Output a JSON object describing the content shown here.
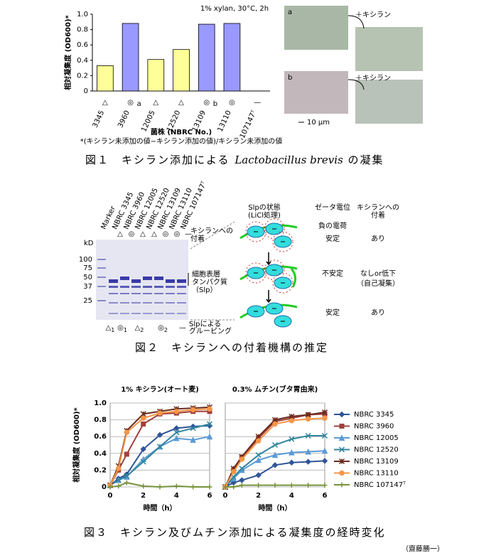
{
  "figure1": {
    "caption_prefix": "図１　キシラン添加による ",
    "caption_italic": "Lactobacillus brevis",
    "caption_suffix": " の凝集",
    "photo_labels": [
      "a",
      "b"
    ],
    "photo_treatment": "＋キシラン",
    "scale_bar": "10 μm"
  },
  "figure2": {
    "lanes": [
      "Marker",
      "NBRC 3345",
      "NBRC 3960",
      "NBRC 12005",
      "NBRC 12520",
      "NBRC 13109",
      "NBRC 13110",
      "NBRC 107147ᵀ"
    ],
    "lane_markers": [
      "△",
      "◎",
      "△",
      "△",
      "◎",
      "◎",
      "—"
    ],
    "marker_row_label": [
      "キシランへの",
      "付着"
    ],
    "kd_label": "kD",
    "kd_ticks": [
      100,
      75,
      50,
      37,
      25
    ],
    "band_label": [
      "細胞表層",
      "タンパク質",
      "（Slp）"
    ],
    "groups": [
      {
        "symbol": "△",
        "index": "1"
      },
      {
        "symbol": "◎",
        "index": "1"
      },
      {
        "symbol": "△",
        "index": "2"
      },
      {
        "symbol": "◎",
        "index": "2"
      },
      {
        "symbol": "—"
      }
    ],
    "group_label": [
      "Slpによる",
      "グルーピング"
    ],
    "diagram_headers": [
      [
        "Slpの状態",
        "(LiCl処理)"
      ],
      [
        "ゼータ電位"
      ],
      [
        "キシランへの",
        "付着"
      ]
    ],
    "diagram_rows": [
      {
        "charge": "負の電荷",
        "zeta": "安定",
        "adhesion": [
          "あり"
        ]
      },
      {
        "zeta": "不安定",
        "adhesion": [
          "なしor低下",
          "（自己凝集）"
        ]
      },
      {
        "zeta": "安定",
        "adhesion": [
          "あり"
        ]
      }
    ],
    "caption": "図２　キシランへの付着機構の推定"
  },
  "figure3": {
    "caption": "図３　キシラン及びムチン添加による凝集度の経時変化",
    "author": "（齋藤勝一）"
  },
  "chart_data": [
    {
      "type": "bar",
      "annotation": "1% xylan, 30°C, 2h",
      "ylabel": "相対凝集度 (OD600)*",
      "xlabel": "菌株 (NBRC No.)",
      "footnote": "*(キシラン未添加の値−キシラン添加の値)/キシラン未添加の値",
      "categories": [
        "3345",
        "3960",
        "12005",
        "12520",
        "13109",
        "13110",
        "107147ᵀ"
      ],
      "values": [
        0.33,
        0.88,
        0.41,
        0.54,
        0.87,
        0.88,
        null
      ],
      "colors": [
        "#ffff99",
        "#9999ff",
        "#ffff99",
        "#ffff99",
        "#9999ff",
        "#9999ff",
        "#ffff99"
      ],
      "markers": [
        "△",
        "◎",
        "△",
        "△",
        "◎",
        "◎",
        "—"
      ],
      "marker_letters": [
        null,
        "a",
        null,
        null,
        "b",
        null,
        null
      ],
      "ylim": [
        0,
        1
      ],
      "yticks": [
        0,
        0.2,
        0.4,
        0.6,
        0.8,
        {
          "value": 1,
          "label": "1.0"
        }
      ]
    },
    {
      "type": "line",
      "title": "1% キシラン(オート麦)",
      "ylabel": "相対凝集度 (OD600)*",
      "xlabel": "時間（h）",
      "x": [
        0,
        0.5,
        1,
        2,
        3,
        4,
        5,
        6
      ],
      "xlim": [
        0,
        6
      ],
      "xticks": [
        0,
        2,
        4,
        6
      ],
      "ylim": [
        0,
        1
      ],
      "yticks": [
        0,
        0.2,
        0.4,
        0.6,
        0.8,
        {
          "value": 1,
          "label": "1.0"
        }
      ],
      "grid": true,
      "series": [
        {
          "color": "#2f5597",
          "marker": "diamond",
          "values": [
            0.02,
            0.1,
            0.15,
            0.45,
            0.62,
            0.7,
            0.72,
            0.73
          ]
        },
        {
          "color": "#a0413d",
          "marker": "square",
          "values": [
            0.02,
            0.2,
            0.39,
            0.75,
            0.87,
            0.88,
            0.9,
            0.9
          ]
        },
        {
          "color": "#5b9bd5",
          "marker": "triangle",
          "values": [
            0.02,
            0.08,
            0.12,
            0.33,
            0.48,
            0.58,
            0.56,
            0.6
          ]
        },
        {
          "color": "#31859c",
          "marker": "x",
          "values": [
            0.02,
            0.08,
            0.13,
            0.3,
            0.48,
            0.65,
            0.7,
            0.75
          ]
        },
        {
          "color": "#6a2c1e",
          "marker": "star",
          "values": [
            0.02,
            0.25,
            0.67,
            0.87,
            0.9,
            0.93,
            0.94,
            0.95
          ]
        },
        {
          "color": "#f79646",
          "marker": "circle",
          "values": [
            0.02,
            0.22,
            0.65,
            0.82,
            0.88,
            0.9,
            0.92,
            0.93
          ]
        },
        {
          "color": "#77933c",
          "marker": "plus",
          "values": [
            0,
            0.01,
            0.05,
            0.01,
            0,
            0.01,
            0,
            0
          ]
        }
      ]
    },
    {
      "type": "line",
      "title": "0.3% ムチン(ブタ胃由来)",
      "xlabel": "時間（h）",
      "x": [
        0,
        0.5,
        1,
        2,
        3,
        4,
        5,
        6
      ],
      "xlim": [
        0,
        6
      ],
      "xticks": [
        0,
        2,
        4,
        6
      ],
      "ylim": [
        0,
        1
      ],
      "yticks": [
        0,
        0.2,
        0.4,
        0.6,
        0.8,
        1
      ],
      "grid": true,
      "series": [
        {
          "name": "NBRC 3345",
          "color": "#2f5597",
          "marker": "diamond",
          "values": [
            0,
            0.05,
            0.08,
            0.14,
            0.26,
            0.29,
            0.3,
            0.31
          ]
        },
        {
          "name": "NBRC 3960",
          "color": "#a0413d",
          "marker": "square",
          "values": [
            0,
            0.2,
            0.35,
            0.58,
            0.78,
            0.82,
            0.86,
            0.87
          ]
        },
        {
          "name": "NBRC 12005",
          "color": "#5b9bd5",
          "marker": "triangle",
          "values": [
            0,
            0.1,
            0.2,
            0.32,
            0.38,
            0.41,
            0.42,
            0.43
          ]
        },
        {
          "name": "NBRC 12520",
          "color": "#31859c",
          "marker": "x",
          "values": [
            0,
            0.12,
            0.22,
            0.38,
            0.5,
            0.57,
            0.61,
            0.61
          ]
        },
        {
          "name": "NBRC 13109",
          "color": "#6a2c1e",
          "marker": "star",
          "values": [
            0,
            0.22,
            0.36,
            0.6,
            0.8,
            0.84,
            0.86,
            0.89
          ]
        },
        {
          "name": "NBRC 13110",
          "color": "#f79646",
          "marker": "circle",
          "values": [
            0,
            0.18,
            0.33,
            0.55,
            0.75,
            0.79,
            0.81,
            0.82
          ]
        },
        {
          "name": "NBRC 107147ᵀ",
          "color": "#77933c",
          "marker": "plus",
          "values": [
            0,
            0,
            0.02,
            0.02,
            0.02,
            0.02,
            0.02,
            0.02
          ]
        }
      ]
    }
  ]
}
